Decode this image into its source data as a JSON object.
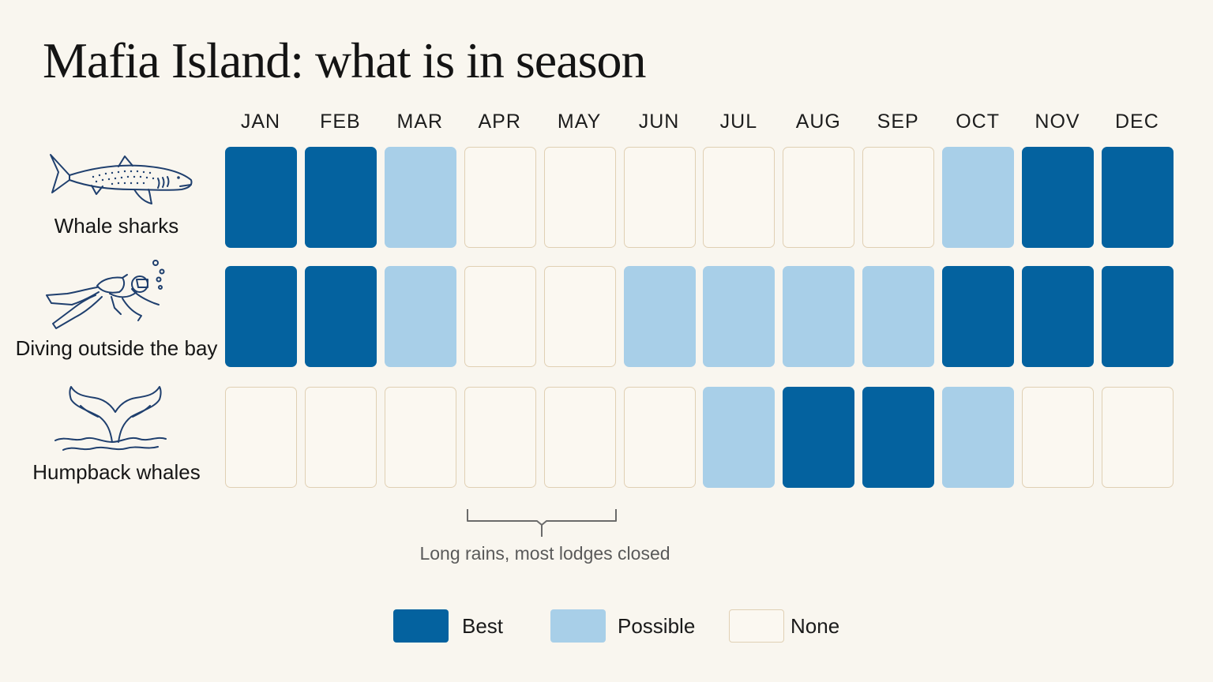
{
  "title": "Mafia Island: what is in season",
  "colors": {
    "best": "#04629f",
    "possible": "#a8cfe8",
    "none_fill": "#fbf8f1",
    "none_border": "#e0d0b4",
    "icon_stroke": "#1f3f6e"
  },
  "chart_data": {
    "type": "heatmap",
    "title": "Mafia Island: what is in season",
    "months": [
      "JAN",
      "FEB",
      "MAR",
      "APR",
      "MAY",
      "JUN",
      "JUL",
      "AUG",
      "SEP",
      "OCT",
      "NOV",
      "DEC"
    ],
    "levels": [
      "Best",
      "Possible",
      "None"
    ],
    "rows": [
      {
        "label": "Whale sharks",
        "icon": "whale-shark-icon",
        "values": [
          "Best",
          "Best",
          "Possible",
          "None",
          "None",
          "None",
          "None",
          "None",
          "None",
          "Possible",
          "Best",
          "Best"
        ]
      },
      {
        "label": "Diving outside the bay",
        "icon": "scuba-diver-icon",
        "values": [
          "Best",
          "Best",
          "Possible",
          "None",
          "None",
          "Possible",
          "Possible",
          "Possible",
          "Possible",
          "Best",
          "Best",
          "Best"
        ]
      },
      {
        "label": "Humpback whales",
        "icon": "whale-tail-icon",
        "values": [
          "None",
          "None",
          "None",
          "None",
          "None",
          "None",
          "Possible",
          "Best",
          "Best",
          "Possible",
          "None",
          "None"
        ]
      }
    ],
    "annotation": {
      "text": "Long rains, most lodges closed",
      "months": [
        "APR",
        "MAY"
      ]
    },
    "legend": {
      "placement": "bottom-center",
      "items": [
        {
          "label": "Best"
        },
        {
          "label": "Possible"
        },
        {
          "label": "None"
        }
      ]
    }
  }
}
